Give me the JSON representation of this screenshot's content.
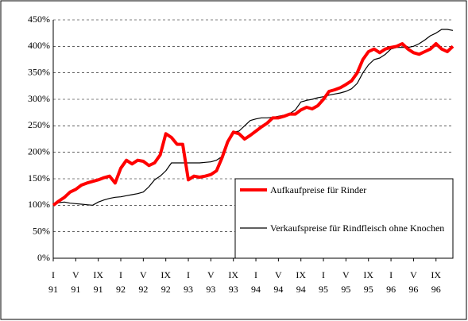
{
  "chart_data": {
    "type": "line",
    "categories": [
      "I\n91",
      null,
      null,
      null,
      "V\n91",
      null,
      null,
      null,
      "IX\n91",
      null,
      null,
      null,
      "I\n92",
      null,
      null,
      null,
      "V\n92",
      null,
      null,
      null,
      "IX\n92",
      null,
      null,
      null,
      "I\n93",
      null,
      null,
      null,
      "V\n93",
      null,
      null,
      null,
      "IX\n93",
      null,
      null,
      null,
      "I\n94",
      null,
      null,
      null,
      "V\n94",
      null,
      null,
      null,
      "IX\n94",
      null,
      null,
      null,
      "I\n95",
      null,
      null,
      null,
      "V\n95",
      null,
      null,
      null,
      "IX\n95",
      null,
      null,
      null,
      "I\n96",
      null,
      null,
      null,
      "V\n96",
      null,
      null,
      null,
      "IX\n96",
      null,
      null,
      null
    ],
    "series": [
      {
        "name": "Aufkaufpreise für Rinder",
        "color": "#ff0000",
        "values": [
          100,
          108,
          115,
          125,
          130,
          138,
          142,
          145,
          148,
          152,
          155,
          142,
          170,
          185,
          178,
          185,
          183,
          175,
          180,
          195,
          235,
          228,
          215,
          215,
          148,
          155,
          153,
          155,
          158,
          165,
          190,
          220,
          238,
          235,
          225,
          232,
          240,
          248,
          255,
          265,
          265,
          268,
          272,
          272,
          280,
          285,
          282,
          288,
          300,
          315,
          318,
          322,
          328,
          335,
          350,
          375,
          390,
          395,
          388,
          395,
          398,
          400,
          405,
          395,
          388,
          385,
          390,
          395,
          405,
          395,
          390,
          400
        ]
      },
      {
        "name": "Verkaufspreise für Rindfleisch ohne Knochen",
        "color": "#000000",
        "values": [
          100,
          105,
          106,
          104,
          103,
          102,
          101,
          100,
          106,
          110,
          113,
          115,
          116,
          118,
          120,
          122,
          125,
          135,
          148,
          155,
          165,
          180,
          180,
          180,
          180,
          180,
          180,
          181,
          182,
          185,
          192,
          220,
          238,
          240,
          250,
          260,
          263,
          265,
          265,
          266,
          268,
          270,
          273,
          280,
          295,
          298,
          300,
          303,
          305,
          308,
          310,
          312,
          315,
          320,
          330,
          350,
          365,
          375,
          378,
          385,
          395,
          398,
          398,
          398,
          400,
          405,
          412,
          420,
          425,
          432,
          432,
          430
        ]
      }
    ],
    "ylim": [
      0,
      450
    ],
    "yticks": [
      {
        "value": 0,
        "label": "0%"
      },
      {
        "value": 50,
        "label": "50%"
      },
      {
        "value": 100,
        "label": "100%"
      },
      {
        "value": 150,
        "label": "150%"
      },
      {
        "value": 200,
        "label": "200%"
      },
      {
        "value": 250,
        "label": "250%"
      },
      {
        "value": 300,
        "label": "300%"
      },
      {
        "value": 350,
        "label": "350%"
      },
      {
        "value": 400,
        "label": "400%"
      },
      {
        "value": 450,
        "label": "450%"
      }
    ],
    "grid": true,
    "legend": "lower right"
  }
}
